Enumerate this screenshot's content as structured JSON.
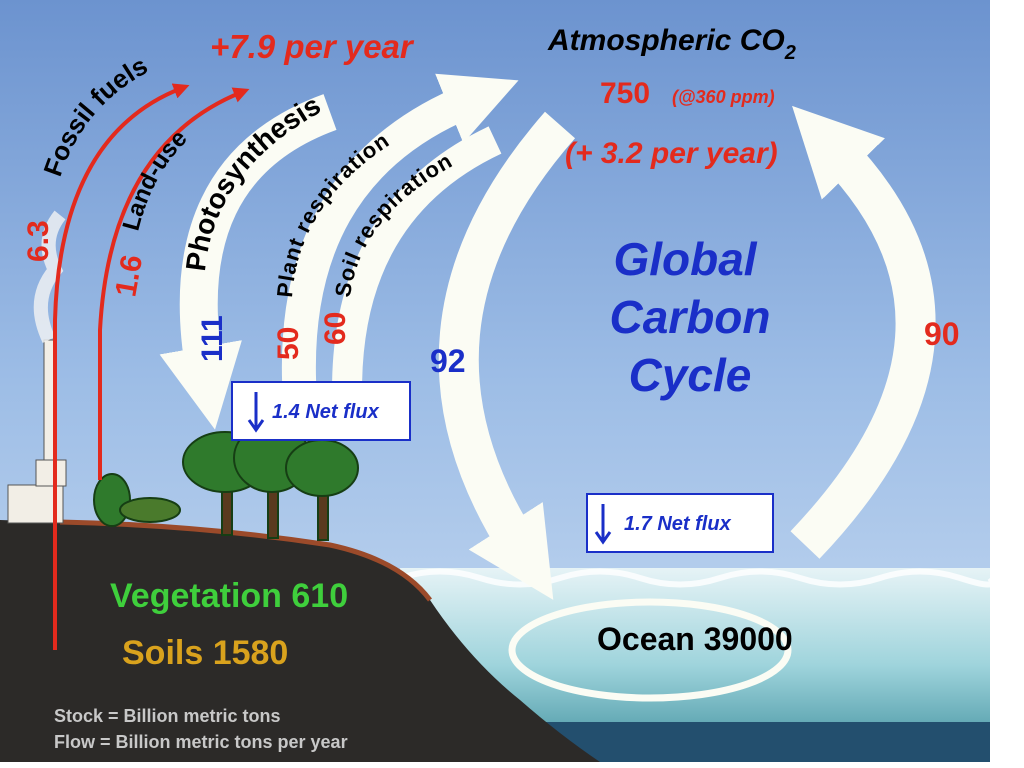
{
  "atmosphere": {
    "title": "Atmospheric CO",
    "subscript": "2",
    "stock": "750",
    "note": "(@360 ppm)",
    "change": "(+ 3.2 per year)"
  },
  "emissions_total": "+7.9 per year",
  "flows": [
    {
      "label": "Fossil fuels",
      "value": "6.3"
    },
    {
      "label": "Land-use",
      "value": "1.6"
    },
    {
      "label": "Photosynthesis",
      "value": "111"
    },
    {
      "label": "Plant respiration",
      "value": "50"
    },
    {
      "label": "Soil respiration",
      "value": "60"
    },
    {
      "value": "92"
    },
    {
      "value": "90"
    }
  ],
  "net_fluxes": [
    "1.4 Net flux",
    "1.7 Net flux"
  ],
  "title_lines": [
    "Global",
    "Carbon",
    "Cycle"
  ],
  "stocks": {
    "vegetation": "Vegetation 610",
    "soils": "Soils 1580",
    "ocean": "Ocean 39000"
  },
  "legend": [
    "Stock = Billion metric tons",
    "Flow = Billion metric tons per year"
  ]
}
